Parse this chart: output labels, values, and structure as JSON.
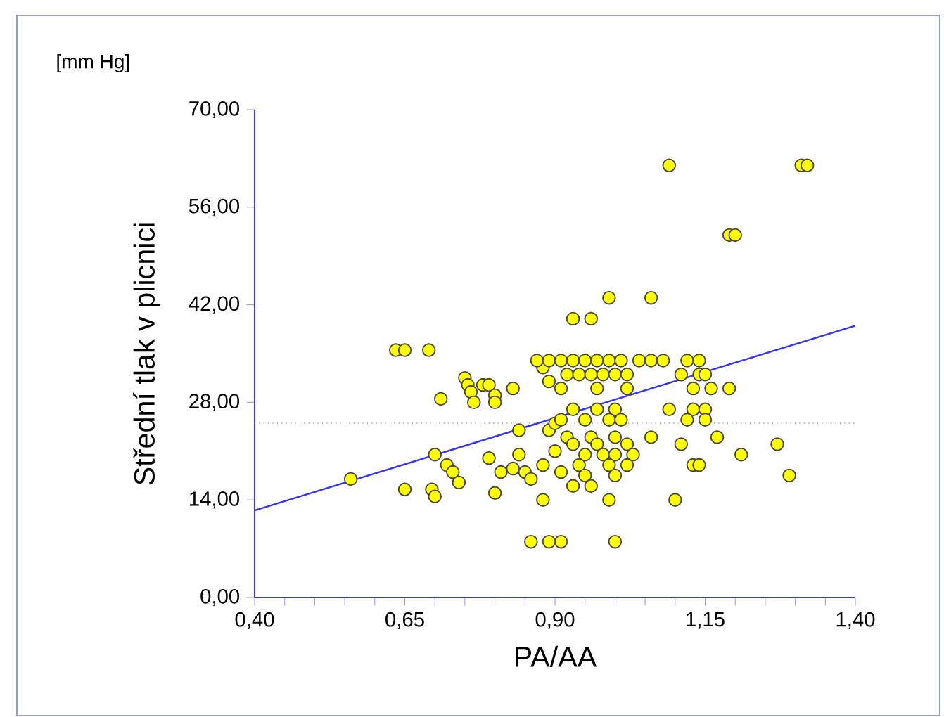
{
  "chart_data": {
    "type": "scatter",
    "xlabel": "PA/AA",
    "ylabel": "Střední tlak v plicnici",
    "annotations": [
      "[mm Hg]"
    ],
    "xlim": [
      0.4,
      1.4
    ],
    "ylim": [
      0,
      70
    ],
    "xticks": [
      {
        "value": 0.4,
        "label": "0,40"
      },
      {
        "value": 0.45,
        "label": null
      },
      {
        "value": 0.5,
        "label": null
      },
      {
        "value": 0.55,
        "label": null
      },
      {
        "value": 0.6,
        "label": null
      },
      {
        "value": 0.65,
        "label": "0,65"
      },
      {
        "value": 0.7,
        "label": null
      },
      {
        "value": 0.75,
        "label": null
      },
      {
        "value": 0.8,
        "label": null
      },
      {
        "value": 0.85,
        "label": null
      },
      {
        "value": 0.9,
        "label": "0,90"
      },
      {
        "value": 0.95,
        "label": null
      },
      {
        "value": 1.0,
        "label": null
      },
      {
        "value": 1.05,
        "label": null
      },
      {
        "value": 1.1,
        "label": null
      },
      {
        "value": 1.15,
        "label": "1,15"
      },
      {
        "value": 1.2,
        "label": null
      },
      {
        "value": 1.25,
        "label": null
      },
      {
        "value": 1.3,
        "label": null
      },
      {
        "value": 1.35,
        "label": null
      },
      {
        "value": 1.4,
        "label": "1,40"
      }
    ],
    "yticks": [
      {
        "value": 0,
        "label": "0,00"
      },
      {
        "value": 14,
        "label": "14,00"
      },
      {
        "value": 28,
        "label": "28,00"
      },
      {
        "value": 42,
        "label": "42,00"
      },
      {
        "value": 56,
        "label": "56,00"
      },
      {
        "value": 70,
        "label": "70,00"
      }
    ],
    "marker": "circle",
    "ref_lines": [
      {
        "axis": "y",
        "value": 25,
        "color": "#808080",
        "line_style": "dotted"
      }
    ],
    "series": [
      {
        "type": "scatter",
        "color": "#ffff00",
        "x": [
          0.56,
          0.635,
          0.65,
          0.69,
          0.65,
          0.695,
          0.7,
          0.7,
          0.71,
          0.72,
          0.73,
          0.75,
          0.755,
          0.76,
          0.765,
          0.74,
          0.78,
          0.79,
          0.8,
          0.8,
          0.79,
          0.81,
          0.8,
          0.83,
          0.84,
          0.83,
          0.84,
          0.85,
          0.86,
          0.86,
          0.88,
          0.89,
          0.88,
          0.88,
          0.89,
          0.9,
          0.9,
          0.91,
          0.91,
          0.87,
          0.89,
          0.91,
          0.93,
          0.95,
          0.97,
          0.99,
          1.01,
          1.04,
          1.06,
          1.08,
          1.12,
          1.14,
          0.93,
          0.96,
          0.99,
          1.06,
          1.09,
          1.19,
          1.2,
          1.31,
          1.32,
          0.92,
          0.94,
          0.96,
          0.98,
          1.0,
          1.02,
          1.11,
          1.14,
          1.15,
          0.91,
          0.97,
          1.02,
          1.13,
          1.16,
          1.19,
          0.93,
          0.97,
          1.0,
          1.09,
          1.13,
          1.15,
          0.91,
          0.95,
          0.99,
          1.01,
          1.12,
          1.15,
          0.92,
          0.96,
          1.0,
          1.06,
          1.17,
          0.93,
          0.97,
          1.02,
          1.11,
          1.27,
          0.95,
          0.98,
          1.0,
          1.03,
          1.21,
          0.94,
          0.99,
          1.02,
          1.13,
          1.14,
          0.95,
          1.0,
          1.29,
          0.96,
          0.93,
          0.99,
          1.1,
          0.89,
          1.0
        ],
        "values": [
          17,
          35.5,
          35.5,
          35.5,
          15.5,
          15.5,
          14.5,
          20.5,
          28.5,
          19,
          18,
          31.5,
          30.5,
          29.5,
          28,
          16.5,
          30.5,
          30.5,
          29,
          28,
          20,
          18,
          15,
          30,
          24,
          18.5,
          20.5,
          18,
          17,
          8,
          33,
          31,
          19,
          14,
          24,
          25,
          21,
          18,
          8,
          34,
          34,
          34,
          34,
          34,
          34,
          34,
          34,
          34,
          34,
          34,
          34,
          34,
          40,
          40,
          43,
          43,
          62,
          52,
          52,
          62,
          62,
          32,
          32,
          32,
          32,
          32,
          32,
          32,
          32,
          32,
          30,
          30,
          30,
          30,
          30,
          30,
          27,
          27,
          27,
          27,
          27,
          27,
          25.5,
          25.5,
          25.5,
          25.5,
          25.5,
          25.5,
          23,
          23,
          23,
          23,
          23,
          22,
          22,
          22,
          22,
          22,
          20.5,
          20.5,
          20.5,
          20.5,
          20.5,
          19,
          19,
          19,
          19,
          19,
          17.5,
          17.5,
          17.5,
          16,
          16,
          14,
          14,
          8,
          8
        ]
      },
      {
        "type": "line",
        "color": "#3333ff",
        "marker": "none",
        "x": [
          0.4,
          1.4
        ],
        "values": [
          12.5,
          39
        ]
      }
    ]
  }
}
